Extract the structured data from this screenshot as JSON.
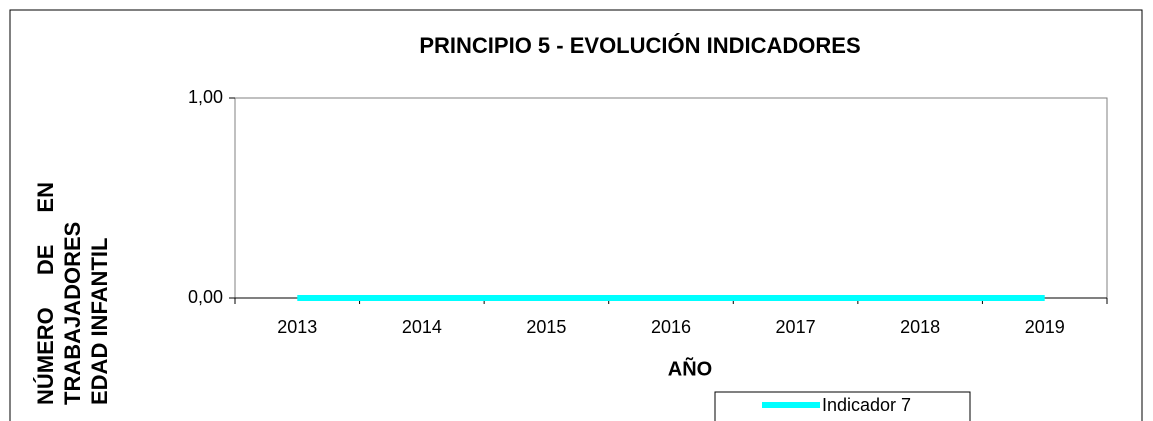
{
  "chart_data": {
    "type": "line",
    "title": "PRINCIPIO 5 - EVOLUCIÓN INDICADORES",
    "x_label": "AÑO",
    "y_label": [
      "NÚMERO DE EN",
      "TRABAJADORES",
      "EDAD INFANTIL"
    ],
    "categories": [
      "2013",
      "2014",
      "2015",
      "2016",
      "2017",
      "2018",
      "2019"
    ],
    "series": [
      {
        "name": "Indicador 7",
        "color": "#00ffff",
        "values": [
          0,
          0,
          0,
          0,
          0,
          0,
          0
        ]
      }
    ],
    "ylim": [
      0,
      1
    ],
    "yticks": [
      {
        "value": 0,
        "label": "0,00"
      },
      {
        "value": 1,
        "label": "1,00"
      }
    ],
    "legend": "bottom"
  }
}
